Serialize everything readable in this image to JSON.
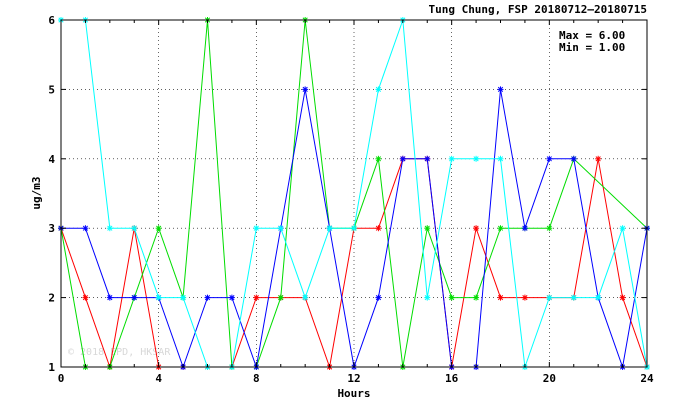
{
  "chart_data": {
    "type": "line",
    "title": "Tung Chung, FSP 20180712–20180715",
    "xlabel": "Hours",
    "ylabel": "ug/m3",
    "xlim": [
      0,
      24
    ],
    "ylim": [
      1,
      6
    ],
    "xticks": [
      "0",
      "4",
      "8",
      "12",
      "16",
      "20",
      "24"
    ],
    "yticks": [
      "1",
      "2",
      "3",
      "4",
      "5",
      "6"
    ],
    "grid": true,
    "stats": {
      "max_label": "Max = 6.00",
      "min_label": "Min = 1.00"
    },
    "watermark": "© 2018 EPD, HKSAR",
    "x": [
      0,
      1,
      2,
      3,
      4,
      5,
      6,
      7,
      8,
      9,
      10,
      11,
      12,
      13,
      14,
      15,
      16,
      17,
      18,
      19,
      20,
      21,
      22,
      23,
      24
    ],
    "series": [
      {
        "color": "#ff0000",
        "values": [
          3,
          2,
          1,
          3,
          1,
          1,
          1,
          1,
          2,
          2,
          2,
          1,
          3,
          3,
          4,
          4,
          1,
          3,
          2,
          2,
          2,
          2,
          4,
          2,
          1
        ]
      },
      {
        "color": "#00dd00",
        "values": [
          3,
          1,
          1,
          2,
          3,
          2,
          6,
          1,
          1,
          2,
          6,
          3,
          3,
          4,
          1,
          3,
          2,
          2,
          3,
          3,
          3,
          4,
          null,
          null,
          3
        ]
      },
      {
        "color": "#0000ff",
        "values": [
          3,
          3,
          2,
          2,
          2,
          1,
          2,
          2,
          1,
          3,
          5,
          3,
          1,
          2,
          4,
          4,
          1,
          1,
          5,
          3,
          4,
          4,
          2,
          1,
          3
        ]
      },
      {
        "color": "#00ffff",
        "values": [
          6,
          6,
          3,
          3,
          2,
          2,
          1,
          1,
          3,
          3,
          2,
          3,
          3,
          5,
          6,
          2,
          4,
          4,
          4,
          1,
          2,
          2,
          2,
          3,
          1
        ]
      }
    ]
  }
}
